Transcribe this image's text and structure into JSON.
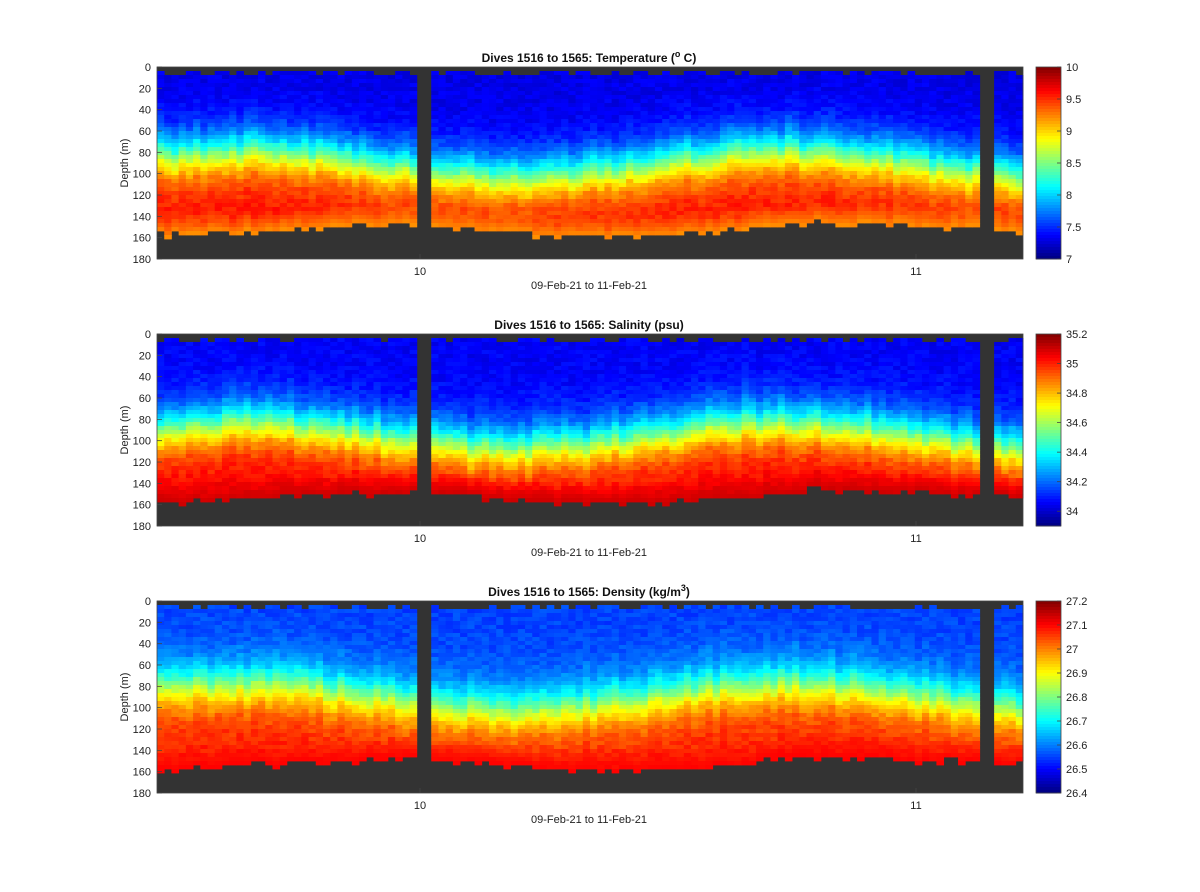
{
  "figure": {
    "background": "#ffffff",
    "land_color": "#333333"
  },
  "chart_data": [
    {
      "type": "heatmap",
      "title": "Dives 1516 to 1565: Temperature (",
      "title_sup": "o",
      "title_end": " C)",
      "xlabel": "09-Feb-21 to 11-Feb-21",
      "ylabel": "Depth (m)",
      "x_ticks": [
        "10",
        "11"
      ],
      "y_ticks": [
        "0",
        "20",
        "40",
        "60",
        "80",
        "100",
        "120",
        "140",
        "160",
        "180"
      ],
      "ylim": [
        0,
        180
      ],
      "colorbar": {
        "range": [
          7,
          10
        ],
        "ticks": [
          "7",
          "7.5",
          "8",
          "8.5",
          "9",
          "9.5",
          "10"
        ],
        "colormap": "jet"
      },
      "profile": {
        "surface": 7.3,
        "thermocline_depth": 90,
        "deep": 9.6,
        "bottom_value": 9.2
      }
    },
    {
      "type": "heatmap",
      "title": "Dives 1516 to 1565: Salinity (psu)",
      "xlabel": "09-Feb-21 to 11-Feb-21",
      "ylabel": "Depth (m)",
      "x_ticks": [
        "10",
        "11"
      ],
      "y_ticks": [
        "0",
        "20",
        "40",
        "60",
        "80",
        "100",
        "120",
        "140",
        "160",
        "180"
      ],
      "ylim": [
        0,
        180
      ],
      "colorbar": {
        "range": [
          33.9,
          35.2
        ],
        "ticks": [
          "34",
          "34.2",
          "34.4",
          "34.6",
          "34.8",
          "35",
          "35.2"
        ],
        "colormap": "jet"
      },
      "profile": {
        "surface": 34.05,
        "thermocline_depth": 95,
        "deep": 35.05,
        "bottom_value": 35.1
      }
    },
    {
      "type": "heatmap",
      "title": "Dives 1516 to 1565: Density (kg/m",
      "title_sup": "3",
      "title_end": ")",
      "xlabel": "09-Feb-21 to 11-Feb-21",
      "ylabel": "Depth (m)",
      "x_ticks": [
        "10",
        "11"
      ],
      "y_ticks": [
        "0",
        "20",
        "40",
        "60",
        "80",
        "100",
        "120",
        "140",
        "160",
        "180"
      ],
      "ylim": [
        0,
        180
      ],
      "colorbar": {
        "range": [
          26.4,
          27.2
        ],
        "ticks": [
          "26.4",
          "26.5",
          "26.6",
          "26.7",
          "26.8",
          "26.9",
          "27",
          "27.1",
          "27.2"
        ],
        "colormap": "jet"
      },
      "profile": {
        "surface": 26.55,
        "thermocline_depth": 90,
        "deep": 27.08,
        "bottom_value": 27.1
      }
    }
  ]
}
